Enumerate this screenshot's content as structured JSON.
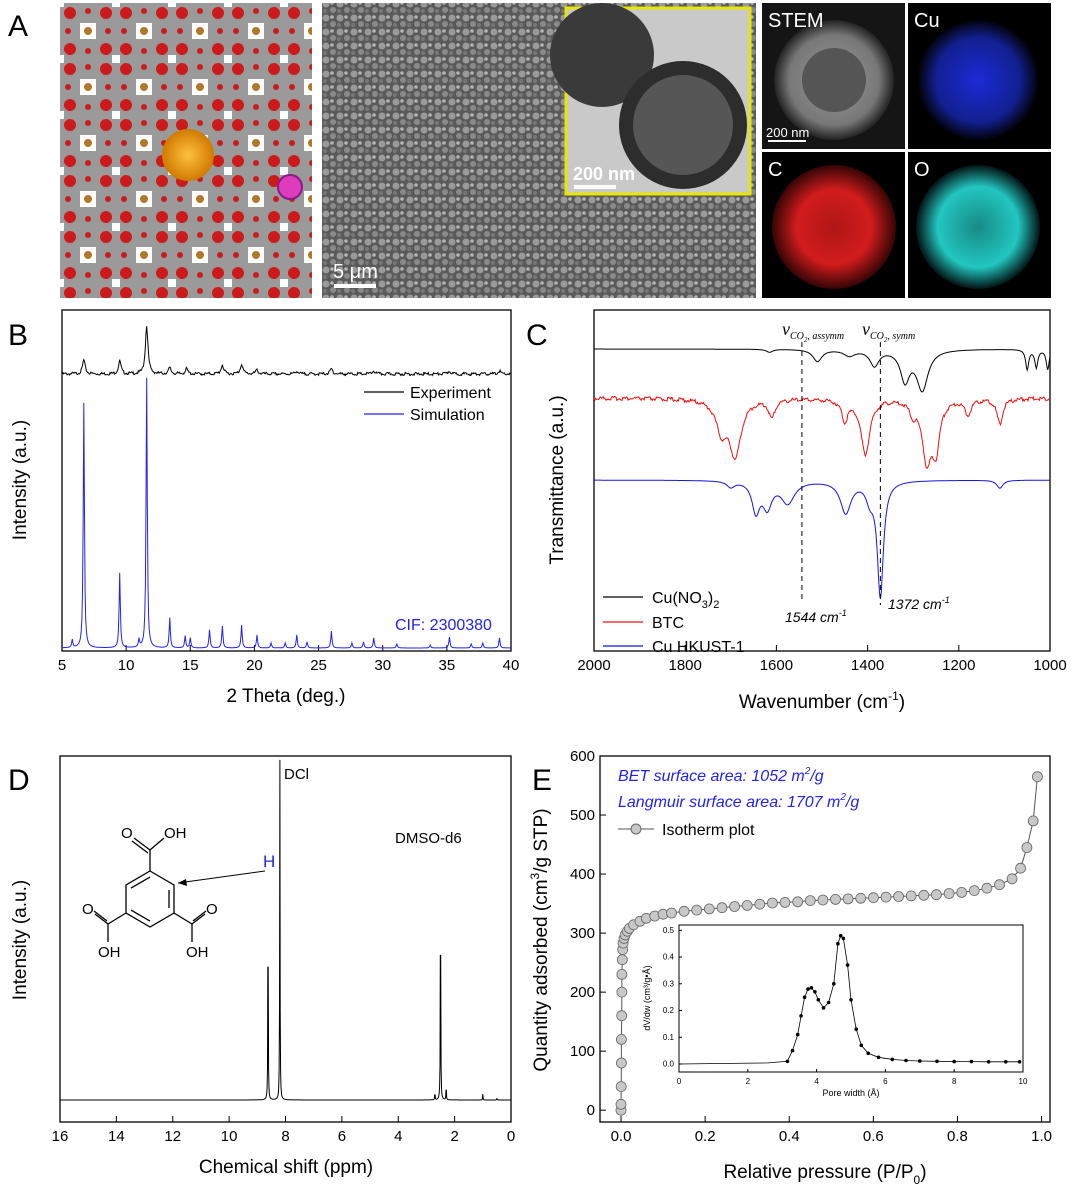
{
  "panel_a": {
    "label": "A",
    "sem_scale": "5 μm",
    "tem_scale": "200 nm",
    "stem_scale": "200 nm",
    "map_labels": [
      "STEM",
      "Cu",
      "C",
      "O"
    ],
    "colors": {
      "cu": "#1b2bd6",
      "c": "#d21c1c",
      "o": "#23c6c0",
      "frame": "#e6e600"
    }
  },
  "chart_data": [
    {
      "id": "B",
      "type": "line",
      "label": "B",
      "xlabel": "2 Theta (deg.)",
      "ylabel": "Intensity (a.u.)",
      "xlim": [
        5,
        40
      ],
      "xticks": [
        "5",
        "10",
        "15",
        "20",
        "25",
        "30",
        "35",
        "40"
      ],
      "series": [
        {
          "name": "Experiment",
          "color": "#000000",
          "peaks": [
            [
              6.7,
              14
            ],
            [
              9.5,
              13
            ],
            [
              11.6,
              48
            ],
            [
              13.4,
              6
            ],
            [
              14.7,
              5
            ],
            [
              17.5,
              9
            ],
            [
              19.0,
              10
            ],
            [
              20.2,
              4
            ],
            [
              23.3,
              3
            ],
            [
              26.0,
              5
            ],
            [
              29.3,
              3
            ],
            [
              35.2,
              3
            ],
            [
              39.1,
              3
            ]
          ]
        },
        {
          "name": "Simulation",
          "color": "#2222ee",
          "peaks": [
            [
              5.8,
              8
            ],
            [
              6.7,
              245
            ],
            [
              9.5,
              75
            ],
            [
              11.0,
              8
            ],
            [
              11.6,
              270
            ],
            [
              13.4,
              30
            ],
            [
              14.6,
              12
            ],
            [
              15.0,
              10
            ],
            [
              16.5,
              18
            ],
            [
              17.5,
              22
            ],
            [
              19.0,
              23
            ],
            [
              20.2,
              13
            ],
            [
              21.3,
              5
            ],
            [
              22.4,
              5
            ],
            [
              23.3,
              13
            ],
            [
              24.1,
              6
            ],
            [
              26.0,
              17
            ],
            [
              27.6,
              5
            ],
            [
              28.5,
              6
            ],
            [
              29.3,
              10
            ],
            [
              31.1,
              4
            ],
            [
              33.7,
              3
            ],
            [
              35.2,
              11
            ],
            [
              36.9,
              4
            ],
            [
              37.8,
              5
            ],
            [
              39.1,
              10
            ]
          ]
        }
      ],
      "annotation": "CIF: 2300380"
    },
    {
      "id": "C",
      "type": "line",
      "label": "C",
      "xlabel": "Wavenumber (cm",
      "xlabel_sup": "-1",
      "xlabel_end": ")",
      "ylabel": "Transmittance (a.u.)",
      "xlim": [
        2000,
        1000
      ],
      "xticks": [
        "2000",
        "1800",
        "1600",
        "1400",
        "1200",
        "1000"
      ],
      "series": [
        {
          "name": "Cu(NO",
          "name_sub": "3",
          "name_end": ")",
          "name_sub2": "2",
          "color": "#000000",
          "dips": [
            [
              1615,
              3,
              8
            ],
            [
              1510,
              12,
              12
            ],
            [
              1440,
              6,
              15
            ],
            [
              1385,
              16,
              12
            ],
            [
              1318,
              30,
              12
            ],
            [
              1280,
              40,
              15
            ],
            [
              1050,
              20,
              4
            ],
            [
              1030,
              18,
              4
            ],
            [
              1005,
              20,
              4
            ]
          ]
        },
        {
          "name": "BTC",
          "color": "#ee1111",
          "dips": [
            [
              1720,
              30,
              15
            ],
            [
              1690,
              55,
              15
            ],
            [
              1610,
              18,
              8
            ],
            [
              1450,
              20,
              8
            ],
            [
              1405,
              55,
              12
            ],
            [
              1300,
              12,
              8
            ],
            [
              1270,
              60,
              12
            ],
            [
              1250,
              45,
              10
            ],
            [
              1180,
              15,
              8
            ],
            [
              1110,
              25,
              8
            ]
          ]
        },
        {
          "name": "Cu HKUST-1",
          "color": "#1515dd",
          "dips": [
            [
              1700,
              6,
              10
            ],
            [
              1645,
              30,
              10
            ],
            [
              1620,
              25,
              12
            ],
            [
              1575,
              22,
              18
            ],
            [
              1448,
              32,
              14
            ],
            [
              1395,
              16,
              10
            ],
            [
              1372,
              115,
              8
            ],
            [
              1110,
              8,
              8
            ]
          ]
        }
      ],
      "annotations": [
        {
          "value": 1544,
          "text": "1544 cm",
          "sup": "-1",
          "mode": "v",
          "mode_sub": "CO",
          "mode_sub2": "2",
          "mode_tail": ", assymm"
        },
        {
          "value": 1372,
          "text": "1372 cm",
          "sup": "-1",
          "mode": "v",
          "mode_sub": "CO",
          "mode_sub2": "2",
          "mode_tail": ", symm"
        }
      ]
    },
    {
      "id": "D",
      "type": "line",
      "label": "D",
      "xlabel": "Chemical shift (ppm)",
      "ylabel": "Intensity (a.u.)",
      "xlim": [
        16,
        0
      ],
      "xticks": [
        "16",
        "14",
        "12",
        "10",
        "8",
        "6",
        "4",
        "2",
        "0"
      ],
      "peaks": [
        [
          8.62,
          225
        ],
        [
          8.2,
          340
        ],
        [
          2.7,
          8
        ],
        [
          2.5,
          245
        ],
        [
          2.3,
          16
        ],
        [
          1.0,
          6
        ],
        [
          0.5,
          2
        ]
      ],
      "annotations": [
        "DCl",
        "DMSO-d6",
        "H"
      ],
      "molecule": {
        "substituent": "OH"
      }
    },
    {
      "id": "E",
      "type": "scatter",
      "label": "E",
      "xlabel": "Relative pressure (P/P",
      "xlabel_sub": "0",
      "xlabel_end": ")",
      "ylabel": "Quantity adsorbed (cm",
      "ylabel_sup": "3",
      "ylabel_end": "/g STP)",
      "xlim": [
        -0.05,
        1.02
      ],
      "ylim": [
        -20,
        600
      ],
      "xticks": [
        "0.0",
        "0.2",
        "0.4",
        "0.6",
        "0.8",
        "1.0"
      ],
      "yticks": [
        "0",
        "100",
        "200",
        "300",
        "400",
        "500",
        "600"
      ],
      "bet_text": "BET surface area: 1052 m",
      "bet_sup": "2",
      "bet_end": "/g",
      "langmuir_text": "Langmuir surface area: 1707 m",
      "langmuir_sup": "2",
      "langmuir_end": "/g",
      "legend": "Isotherm plot",
      "series": [
        {
          "name": "Isotherm plot",
          "points": [
            [
              0.0,
              0
            ],
            [
              0.0,
              10
            ],
            [
              0.0005,
              40
            ],
            [
              0.001,
              80
            ],
            [
              0.001,
              120
            ],
            [
              0.0015,
              160
            ],
            [
              0.002,
              200
            ],
            [
              0.002,
              230
            ],
            [
              0.003,
              255
            ],
            [
              0.004,
              272
            ],
            [
              0.005,
              283
            ],
            [
              0.007,
              291
            ],
            [
              0.01,
              297
            ],
            [
              0.015,
              303
            ],
            [
              0.02,
              308
            ],
            [
              0.03,
              314
            ],
            [
              0.045,
              320
            ],
            [
              0.06,
              325
            ],
            [
              0.08,
              329
            ],
            [
              0.1,
              332
            ],
            [
              0.12,
              334
            ],
            [
              0.15,
              337
            ],
            [
              0.18,
              339
            ],
            [
              0.21,
              341
            ],
            [
              0.24,
              343
            ],
            [
              0.27,
              345
            ],
            [
              0.3,
              347
            ],
            [
              0.33,
              349
            ],
            [
              0.36,
              351
            ],
            [
              0.39,
              352
            ],
            [
              0.42,
              353
            ],
            [
              0.45,
              355
            ],
            [
              0.48,
              356
            ],
            [
              0.51,
              357
            ],
            [
              0.54,
              358
            ],
            [
              0.57,
              359
            ],
            [
              0.6,
              360
            ],
            [
              0.63,
              361
            ],
            [
              0.66,
              362
            ],
            [
              0.69,
              363
            ],
            [
              0.72,
              364
            ],
            [
              0.75,
              365
            ],
            [
              0.78,
              367
            ],
            [
              0.81,
              369
            ],
            [
              0.84,
              372
            ],
            [
              0.87,
              376
            ],
            [
              0.9,
              382
            ],
            [
              0.93,
              392
            ],
            [
              0.95,
              410
            ],
            [
              0.965,
              445
            ],
            [
              0.98,
              490
            ],
            [
              0.99,
              565
            ]
          ]
        }
      ],
      "inset": {
        "xlabel": "Pore width (Å)",
        "ylabel": "dV/dw (cm³/g•Å)",
        "xlim": [
          0,
          10
        ],
        "ylim": [
          -0.03,
          0.52
        ],
        "xticks": [
          "0",
          "2",
          "4",
          "6",
          "8",
          "10"
        ],
        "yticks": [
          "0.0",
          "0.1",
          "0.2",
          "0.3",
          "0.4",
          "0.5"
        ],
        "points": [
          [
            3.15,
            0.01
          ],
          [
            3.3,
            0.05
          ],
          [
            3.45,
            0.11
          ],
          [
            3.55,
            0.18
          ],
          [
            3.65,
            0.25
          ],
          [
            3.75,
            0.28
          ],
          [
            3.85,
            0.285
          ],
          [
            3.95,
            0.27
          ],
          [
            4.05,
            0.24
          ],
          [
            4.2,
            0.21
          ],
          [
            4.35,
            0.23
          ],
          [
            4.5,
            0.3
          ],
          [
            4.62,
            0.45
          ],
          [
            4.7,
            0.48
          ],
          [
            4.78,
            0.47
          ],
          [
            4.9,
            0.37
          ],
          [
            5.0,
            0.24
          ],
          [
            5.15,
            0.13
          ],
          [
            5.3,
            0.07
          ],
          [
            5.5,
            0.04
          ],
          [
            5.8,
            0.025
          ],
          [
            6.2,
            0.017
          ],
          [
            6.6,
            0.013
          ],
          [
            7.0,
            0.011
          ],
          [
            7.5,
            0.01
          ],
          [
            8.0,
            0.009
          ],
          [
            8.5,
            0.009
          ],
          [
            9.0,
            0.008
          ],
          [
            9.5,
            0.008
          ],
          [
            9.9,
            0.008
          ]
        ]
      }
    }
  ]
}
